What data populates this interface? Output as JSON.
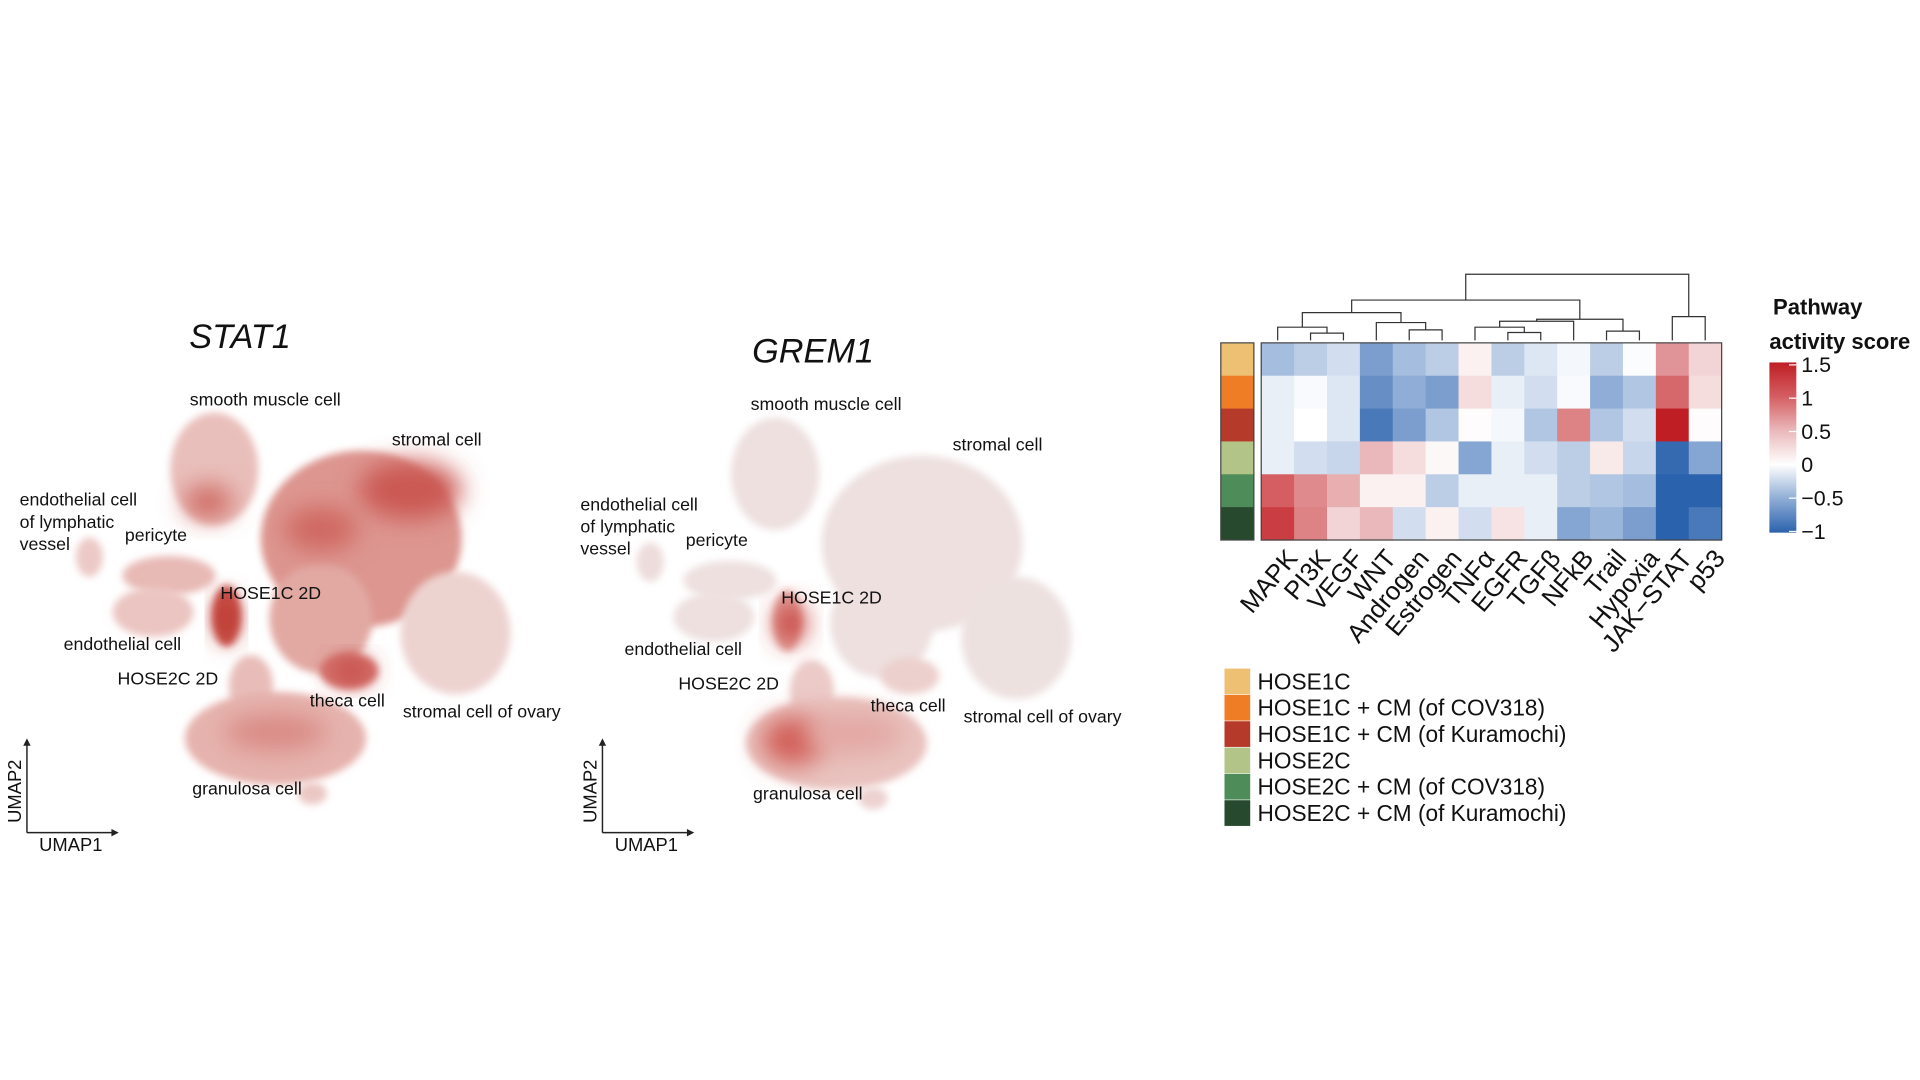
{
  "chart_data": [
    {
      "type": "scatter",
      "subtype": "umap-feature-plot",
      "title": "STAT1",
      "xlabel": "UMAP1",
      "ylabel": "UMAP2",
      "color": "#c8453f",
      "cluster_labels": [
        "smooth muscle cell",
        "stromal cell",
        "endothelial cell\nof lymphatic\nvessel",
        "pericyte",
        "HOSE1C 2D",
        "endothelial cell",
        "HOSE2C 2D",
        "theca cell",
        "stromal cell of ovary",
        "granulosa cell"
      ]
    },
    {
      "type": "scatter",
      "subtype": "umap-feature-plot",
      "title": "GREM1",
      "xlabel": "UMAP1",
      "ylabel": "UMAP2",
      "color": "#c8453f",
      "cluster_labels": [
        "smooth muscle cell",
        "stromal cell",
        "endothelial cell\nof lymphatic\nvessel",
        "pericyte",
        "HOSE1C 2D",
        "endothelial cell",
        "HOSE2C 2D",
        "theca cell",
        "stromal cell of ovary",
        "granulosa cell"
      ]
    },
    {
      "type": "heatmap",
      "columns": [
        "MAPK",
        "PI3K",
        "VEGF",
        "WNT",
        "Androgen",
        "Estrogen",
        "TNFα",
        "EGFR",
        "TGFβ",
        "NFkB",
        "Trail",
        "Hypoxia",
        "JAK−STAT",
        "p53"
      ],
      "rows": [
        "HOSE1C",
        "HOSE1C + CM (of COV318)",
        "HOSE1C + CM (of Kuramochi)",
        "HOSE2C",
        "HOSE2C + CM (of COV318)",
        "HOSE2C + CM (of Kuramochi)"
      ],
      "row_colors": [
        "#eec074",
        "#ee7d26",
        "#b53a29",
        "#b3c488",
        "#4e8c5a",
        "#274a2e"
      ],
      "values": [
        [
          -0.4,
          -0.3,
          -0.2,
          -0.6,
          -0.4,
          -0.3,
          0.1,
          -0.3,
          -0.15,
          -0.05,
          -0.3,
          -0.02,
          0.7,
          0.3
        ],
        [
          -0.1,
          -0.03,
          -0.15,
          -0.7,
          -0.5,
          -0.6,
          0.25,
          -0.1,
          -0.2,
          -0.03,
          -0.5,
          -0.35,
          0.95,
          0.25
        ],
        [
          -0.1,
          0.0,
          -0.15,
          -0.85,
          -0.6,
          -0.35,
          0.02,
          -0.05,
          -0.35,
          0.8,
          -0.35,
          -0.2,
          1.5,
          0.02
        ],
        [
          -0.1,
          -0.2,
          -0.25,
          0.5,
          0.25,
          0.05,
          -0.55,
          -0.1,
          -0.2,
          -0.3,
          0.15,
          -0.25,
          -0.95,
          -0.55
        ],
        [
          1.0,
          0.75,
          0.55,
          0.1,
          0.1,
          -0.3,
          -0.1,
          -0.1,
          -0.1,
          -0.3,
          -0.35,
          -0.4,
          -1.0,
          -1.0
        ],
        [
          1.25,
          0.8,
          0.3,
          0.5,
          -0.2,
          0.1,
          -0.2,
          0.2,
          -0.1,
          -0.55,
          -0.45,
          -0.6,
          -1.0,
          -0.85
        ]
      ],
      "dendrogram": {
        "h": 1.0,
        "c": [
          {
            "h": 0.61,
            "c": [
              {
                "h": 0.42,
                "c": [
                  {
                    "h": 0.2,
                    "c": [
                      "MAPK",
                      {
                        "h": 0.11,
                        "c": [
                          "PI3K",
                          "VEGF"
                        ]
                      }
                    ]
                  },
                  {
                    "h": 0.27,
                    "c": [
                      "WNT",
                      {
                        "h": 0.16,
                        "c": [
                          "Androgen",
                          "Estrogen"
                        ]
                      }
                    ]
                  }
                ]
              },
              {
                "h": 0.32,
                "c": [
                  {
                    "h": 0.29,
                    "c": [
                      {
                        "h": 0.2,
                        "c": [
                          "TNFα",
                          {
                            "h": 0.12,
                            "c": [
                              "EGFR",
                              "TGFβ"
                            ]
                          }
                        ]
                      },
                      "NFkB"
                    ]
                  },
                  {
                    "h": 0.14,
                    "c": [
                      "Trail",
                      "Hypoxia"
                    ]
                  }
                ]
              }
            ]
          },
          {
            "h": 0.36,
            "c": [
              "JAK−STAT",
              "p53"
            ]
          }
        ]
      },
      "colorbar": {
        "title_line1": "Pathway",
        "title_line2": "activity score",
        "range": [
          -1,
          1.5
        ],
        "ticks": [
          "1.5",
          "1",
          "0.5",
          "0",
          "−0.5",
          "−1"
        ],
        "tick_values": [
          1.5,
          1,
          0.5,
          0,
          -0.5,
          -1
        ],
        "low_color": "#2b62ad",
        "mid_color": "#ffffff",
        "high_color": "#bf1e24"
      }
    }
  ]
}
